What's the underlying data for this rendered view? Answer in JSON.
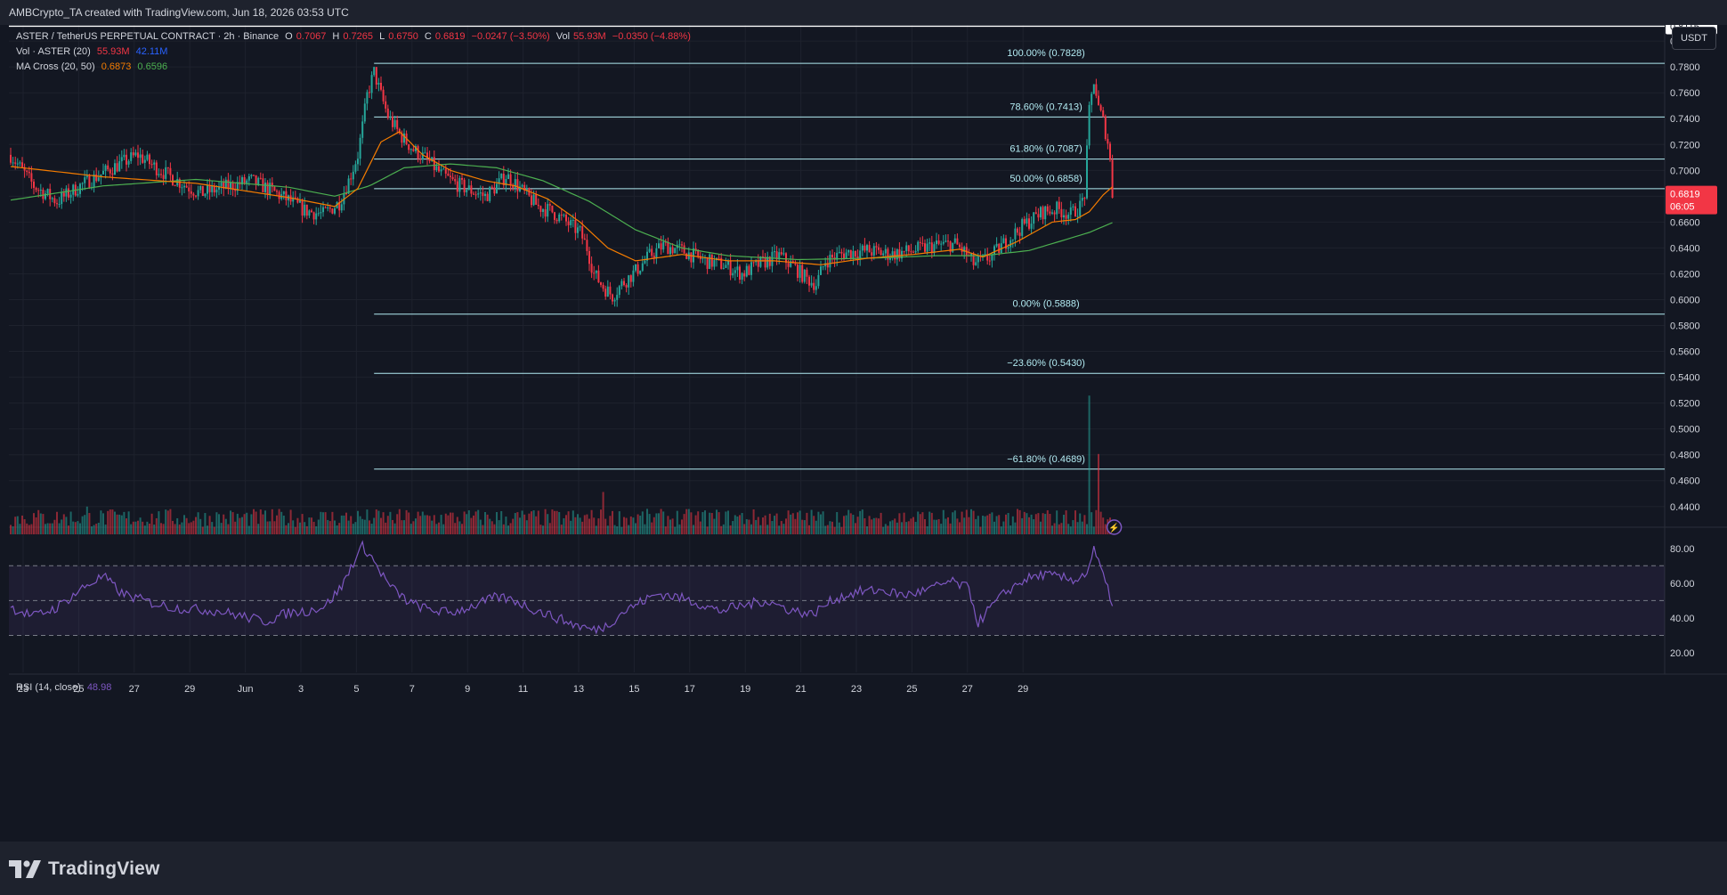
{
  "header": {
    "credit": "AMBCrypto_TA created with TradingView.com, Jun 18, 2026 03:53 UTC"
  },
  "legend": {
    "symbol": "ASTER / TetherUS PERPETUAL CONTRACT · 2h · Binance",
    "o_label": "O",
    "o": "0.7067",
    "h_label": "H",
    "h": "0.7265",
    "l_label": "L",
    "l": "0.6750",
    "c_label": "C",
    "c": "0.6819",
    "change": "−0.0247 (−3.50%)",
    "vol_label": "Vol",
    "vol": "55.93M",
    "vol_change": "−0.0350 (−4.88%)",
    "vol_ind_label": "Vol · ASTER (20)",
    "vol_ind_v1": "55.93M",
    "vol_ind_v2": "42.11M",
    "ma_label": "MA Cross (20, 50)",
    "ma_v1": "0.6873",
    "ma_v2": "0.6596",
    "rsi_label": "RSI (14, close)",
    "rsi_value": "48.98"
  },
  "currency_button": "USDT",
  "footer": {
    "brand": "TradingView"
  },
  "colors": {
    "up": "#26a69a",
    "down": "#f23645",
    "fib": "#b2ebf2",
    "ma_fast": "#f57c00",
    "ma_slow": "#4caf50",
    "rsi": "#7e57c2",
    "volume_ma": "#2962ff"
  },
  "chart_data": {
    "type": "candlestick",
    "interval": "2h",
    "price_axis": {
      "ticks": [
        "0.8000",
        "0.7800",
        "0.7600",
        "0.7400",
        "0.7200",
        "0.7000",
        "0.6800",
        "0.6600",
        "0.6400",
        "0.6200",
        "0.6000",
        "0.5800",
        "0.5600",
        "0.5400",
        "0.5200",
        "0.5000",
        "0.4800",
        "0.4600",
        "0.4400"
      ],
      "range": [
        0.4295,
        0.8125
      ],
      "last_price": 0.6819,
      "last_price_label": "0.6819",
      "countdown": "06:05",
      "marker": 0.8115,
      "marker_label": "0.8115"
    },
    "time_axis": {
      "labels": [
        "23",
        "25",
        "27",
        "29",
        "Jun",
        "3",
        "5",
        "7",
        "9",
        "11",
        "13",
        "15",
        "17",
        "19",
        "21",
        "23",
        "25",
        "27",
        "29"
      ]
    },
    "fibonacci": [
      {
        "label": "100.00% (0.7828)",
        "value": 0.7828
      },
      {
        "label": "78.60% (0.7413)",
        "value": 0.7413
      },
      {
        "label": "61.80% (0.7087)",
        "value": 0.7087
      },
      {
        "label": "50.00% (0.6858)",
        "value": 0.6858
      },
      {
        "label": "0.00% (0.5888)",
        "value": 0.5888
      },
      {
        "label": "−23.60% (0.5430)",
        "value": 0.543
      },
      {
        "label": "−61.80% (0.4689)",
        "value": 0.4689
      }
    ],
    "price_path": [
      [
        0,
        0.712
      ],
      [
        10,
        0.688
      ],
      [
        20,
        0.676
      ],
      [
        30,
        0.688
      ],
      [
        45,
        0.703
      ],
      [
        55,
        0.712
      ],
      [
        62,
        0.703
      ],
      [
        70,
        0.694
      ],
      [
        82,
        0.682
      ],
      [
        95,
        0.688
      ],
      [
        104,
        0.692
      ],
      [
        112,
        0.685
      ],
      [
        120,
        0.677
      ],
      [
        127,
        0.669
      ],
      [
        135,
        0.666
      ],
      [
        142,
        0.675
      ],
      [
        146,
        0.692
      ],
      [
        150,
        0.712
      ],
      [
        152,
        0.734
      ],
      [
        154,
        0.758
      ],
      [
        157,
        0.776
      ],
      [
        160,
        0.758
      ],
      [
        163,
        0.742
      ],
      [
        168,
        0.728
      ],
      [
        174,
        0.716
      ],
      [
        180,
        0.708
      ],
      [
        186,
        0.697
      ],
      [
        192,
        0.69
      ],
      [
        198,
        0.685
      ],
      [
        205,
        0.68
      ],
      [
        210,
        0.688
      ],
      [
        214,
        0.696
      ],
      [
        218,
        0.69
      ],
      [
        222,
        0.682
      ],
      [
        228,
        0.672
      ],
      [
        234,
        0.668
      ],
      [
        240,
        0.66
      ],
      [
        246,
        0.652
      ],
      [
        249,
        0.64
      ],
      [
        252,
        0.62
      ],
      [
        256,
        0.61
      ],
      [
        260,
        0.603
      ],
      [
        264,
        0.612
      ],
      [
        270,
        0.622
      ],
      [
        276,
        0.634
      ],
      [
        282,
        0.642
      ],
      [
        290,
        0.638
      ],
      [
        300,
        0.63
      ],
      [
        308,
        0.627
      ],
      [
        316,
        0.62
      ],
      [
        324,
        0.628
      ],
      [
        332,
        0.634
      ],
      [
        338,
        0.626
      ],
      [
        344,
        0.616
      ],
      [
        348,
        0.612
      ],
      [
        352,
        0.63
      ],
      [
        360,
        0.636
      ],
      [
        370,
        0.638
      ],
      [
        380,
        0.635
      ],
      [
        390,
        0.638
      ],
      [
        400,
        0.642
      ],
      [
        408,
        0.643
      ],
      [
        412,
        0.637
      ],
      [
        416,
        0.628
      ],
      [
        420,
        0.63
      ],
      [
        424,
        0.634
      ],
      [
        430,
        0.645
      ],
      [
        438,
        0.658
      ],
      [
        446,
        0.668
      ],
      [
        452,
        0.67
      ],
      [
        458,
        0.666
      ],
      [
        462,
        0.672
      ],
      [
        464,
        0.682
      ],
      [
        466,
        0.745
      ],
      [
        468,
        0.77
      ],
      [
        470,
        0.748
      ],
      [
        472,
        0.738
      ],
      [
        474,
        0.722
      ],
      [
        475,
        0.7067
      ],
      [
        476,
        0.6819
      ]
    ],
    "ma_fast": [
      [
        0,
        0.703
      ],
      [
        40,
        0.695
      ],
      [
        80,
        0.69
      ],
      [
        120,
        0.679
      ],
      [
        140,
        0.672
      ],
      [
        150,
        0.686
      ],
      [
        160,
        0.722
      ],
      [
        168,
        0.73
      ],
      [
        178,
        0.712
      ],
      [
        190,
        0.7
      ],
      [
        205,
        0.692
      ],
      [
        218,
        0.688
      ],
      [
        232,
        0.678
      ],
      [
        246,
        0.66
      ],
      [
        258,
        0.64
      ],
      [
        270,
        0.63
      ],
      [
        290,
        0.635
      ],
      [
        310,
        0.63
      ],
      [
        330,
        0.63
      ],
      [
        350,
        0.627
      ],
      [
        370,
        0.632
      ],
      [
        390,
        0.635
      ],
      [
        410,
        0.639
      ],
      [
        420,
        0.633
      ],
      [
        435,
        0.645
      ],
      [
        450,
        0.66
      ],
      [
        460,
        0.662
      ],
      [
        466,
        0.668
      ],
      [
        472,
        0.681
      ],
      [
        476,
        0.6873
      ]
    ],
    "ma_slow": [
      [
        0,
        0.677
      ],
      [
        40,
        0.688
      ],
      [
        80,
        0.693
      ],
      [
        120,
        0.687
      ],
      [
        140,
        0.68
      ],
      [
        155,
        0.688
      ],
      [
        170,
        0.702
      ],
      [
        190,
        0.705
      ],
      [
        210,
        0.702
      ],
      [
        230,
        0.692
      ],
      [
        250,
        0.676
      ],
      [
        270,
        0.654
      ],
      [
        290,
        0.64
      ],
      [
        310,
        0.634
      ],
      [
        340,
        0.631
      ],
      [
        370,
        0.632
      ],
      [
        400,
        0.634
      ],
      [
        420,
        0.634
      ],
      [
        440,
        0.638
      ],
      [
        455,
        0.646
      ],
      [
        466,
        0.652
      ],
      [
        476,
        0.6596
      ]
    ],
    "volume_spikes": [
      [
        466,
        19.0
      ],
      [
        470,
        11.0
      ],
      [
        256,
        5.8
      ],
      [
        150,
        3.2
      ],
      [
        33,
        3.8
      ]
    ],
    "rsi": {
      "ticks": [
        "80.00",
        "60.00",
        "40.00",
        "20.00"
      ],
      "range": [
        20,
        85
      ],
      "upper_band": 70,
      "lower_band": 30,
      "middle": 50,
      "path": [
        [
          0,
          46
        ],
        [
          10,
          41
        ],
        [
          20,
          46
        ],
        [
          32,
          58
        ],
        [
          40,
          64
        ],
        [
          48,
          54
        ],
        [
          60,
          49
        ],
        [
          70,
          46
        ],
        [
          80,
          45
        ],
        [
          90,
          44
        ],
        [
          100,
          41
        ],
        [
          110,
          38
        ],
        [
          120,
          43
        ],
        [
          128,
          44
        ],
        [
          136,
          47
        ],
        [
          143,
          58
        ],
        [
          148,
          72
        ],
        [
          152,
          81
        ],
        [
          155,
          77
        ],
        [
          158,
          70
        ],
        [
          164,
          58
        ],
        [
          172,
          49
        ],
        [
          180,
          45
        ],
        [
          190,
          43
        ],
        [
          200,
          47
        ],
        [
          210,
          52
        ],
        [
          218,
          50
        ],
        [
          224,
          46
        ],
        [
          234,
          41
        ],
        [
          244,
          36
        ],
        [
          252,
          33
        ],
        [
          258,
          36
        ],
        [
          264,
          43
        ],
        [
          272,
          49
        ],
        [
          280,
          54
        ],
        [
          288,
          52
        ],
        [
          296,
          49
        ],
        [
          306,
          44
        ],
        [
          316,
          47
        ],
        [
          326,
          50
        ],
        [
          336,
          45
        ],
        [
          346,
          42
        ],
        [
          356,
          51
        ],
        [
          366,
          55
        ],
        [
          376,
          56
        ],
        [
          386,
          53
        ],
        [
          396,
          56
        ],
        [
          406,
          61
        ],
        [
          414,
          57
        ],
        [
          418,
          37
        ],
        [
          422,
          44
        ],
        [
          430,
          55
        ],
        [
          438,
          62
        ],
        [
          446,
          65
        ],
        [
          454,
          63
        ],
        [
          460,
          62
        ],
        [
          465,
          66
        ],
        [
          468,
          79
        ],
        [
          471,
          68
        ],
        [
          474,
          56
        ],
        [
          476,
          48.98
        ]
      ]
    },
    "candle_count": 477
  }
}
